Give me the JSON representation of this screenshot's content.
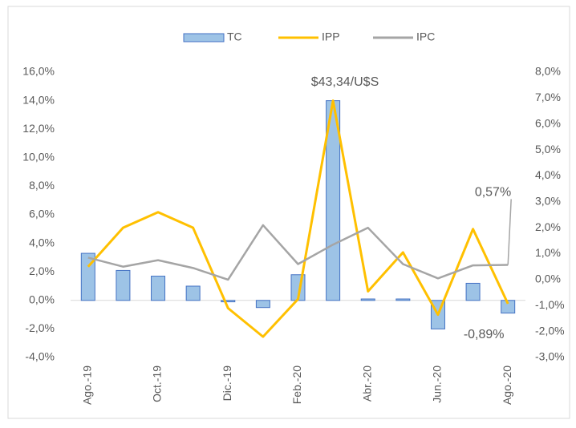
{
  "chart_data": {
    "type": "combo",
    "annotation": "$43,34/U$S",
    "categories": [
      "Ago.-19",
      null,
      "Oct.-19",
      null,
      "Dic.-19",
      null,
      "Feb.-20",
      null,
      "Abr.-20",
      null,
      "Jun.-20",
      null,
      "Ago.-20"
    ],
    "series": [
      {
        "name": "TC",
        "type": "bar",
        "color": "#9dc3e6",
        "stroke": "#4472c4",
        "values": [
          3.3,
          2.1,
          1.7,
          1.0,
          -0.1,
          -0.5,
          1.8,
          14.0,
          0.1,
          0.1,
          -2.0,
          1.2,
          -0.89
        ],
        "value_labels": [
          null,
          null,
          null,
          null,
          null,
          null,
          null,
          null,
          null,
          null,
          null,
          null,
          "-0,89%"
        ]
      },
      {
        "name": "IPP",
        "type": "line",
        "axis": "y2",
        "color": "#ffc000",
        "values": [
          0.5,
          2.0,
          2.6,
          2.0,
          -1.1,
          -2.2,
          -0.75,
          6.9,
          -0.45,
          1.05,
          -1.35,
          1.95,
          -0.93
        ]
      },
      {
        "name": "IPC",
        "type": "line",
        "axis": "y2",
        "color": "#a5a5a5",
        "values": [
          0.85,
          0.5,
          0.75,
          0.45,
          0.0,
          2.1,
          0.6,
          1.35,
          2.0,
          0.6,
          0.05,
          0.55,
          0.57
        ],
        "value_labels": [
          null,
          null,
          null,
          null,
          null,
          null,
          null,
          null,
          null,
          null,
          null,
          null,
          "0,57%"
        ]
      }
    ],
    "ylim": [
      -4,
      16
    ],
    "yticks": [
      {
        "value": -4,
        "label": "-4,0%"
      },
      {
        "value": -2,
        "label": "-2,0%"
      },
      {
        "value": 0,
        "label": "0,0%"
      },
      {
        "value": 2,
        "label": "2,0%"
      },
      {
        "value": 4,
        "label": "4,0%"
      },
      {
        "value": 6,
        "label": "6,0%"
      },
      {
        "value": 8,
        "label": "8,0%"
      },
      {
        "value": 10,
        "label": "10,0%"
      },
      {
        "value": 12,
        "label": "12,0%"
      },
      {
        "value": 14,
        "label": "14,0%"
      },
      {
        "value": 16,
        "label": "16,0%"
      }
    ],
    "y2lim": [
      -3,
      8
    ],
    "y2ticks": [
      {
        "value": -3,
        "label": "-3,0%"
      },
      {
        "value": -2,
        "label": "-2,0%"
      },
      {
        "value": -1,
        "label": "-1,0%"
      },
      {
        "value": 0,
        "label": "0,0%"
      },
      {
        "value": 1,
        "label": "1,0%"
      },
      {
        "value": 2,
        "label": "2,0%"
      },
      {
        "value": 3,
        "label": "3,0%"
      },
      {
        "value": 4,
        "label": "4,0%"
      },
      {
        "value": 5,
        "label": "5,0%"
      },
      {
        "value": 6,
        "label": "6,0%"
      },
      {
        "value": 7,
        "label": "7,0%"
      },
      {
        "value": 8,
        "label": "8,0%"
      }
    ],
    "legend": "top"
  }
}
